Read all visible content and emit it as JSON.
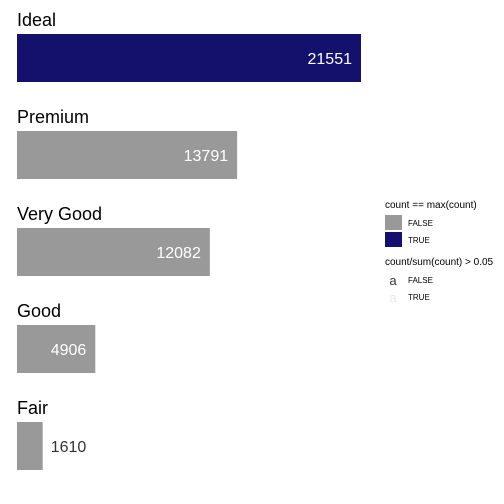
{
  "chart_data": {
    "type": "bar",
    "orientation": "horizontal",
    "categories": [
      "Ideal",
      "Premium",
      "Very Good",
      "Good",
      "Fair"
    ],
    "values": [
      21551,
      13791,
      12082,
      4906,
      1610
    ],
    "max_highlight": [
      true,
      false,
      false,
      false,
      false
    ],
    "label_inside": [
      true,
      true,
      true,
      true,
      false
    ],
    "xlim": [
      0,
      21551
    ],
    "grid": false,
    "legend_position": "right",
    "colors": {
      "bar_default": "#999999",
      "bar_max": "#13116b",
      "label_inside": "#ffffff",
      "label_outside": "#333333",
      "label_true_legend": "#e8e8e8"
    },
    "legend": [
      {
        "title": "count == max(count)",
        "entries": [
          {
            "label": "FALSE",
            "color": "#999999"
          },
          {
            "label": "TRUE",
            "color": "#13116b"
          }
        ]
      },
      {
        "title": "count/sum(count) > 0.05",
        "glyph": "a",
        "entries": [
          {
            "label": "FALSE",
            "color": "#333333"
          },
          {
            "label": "TRUE",
            "color": "#e8e8e8"
          }
        ]
      }
    ]
  }
}
